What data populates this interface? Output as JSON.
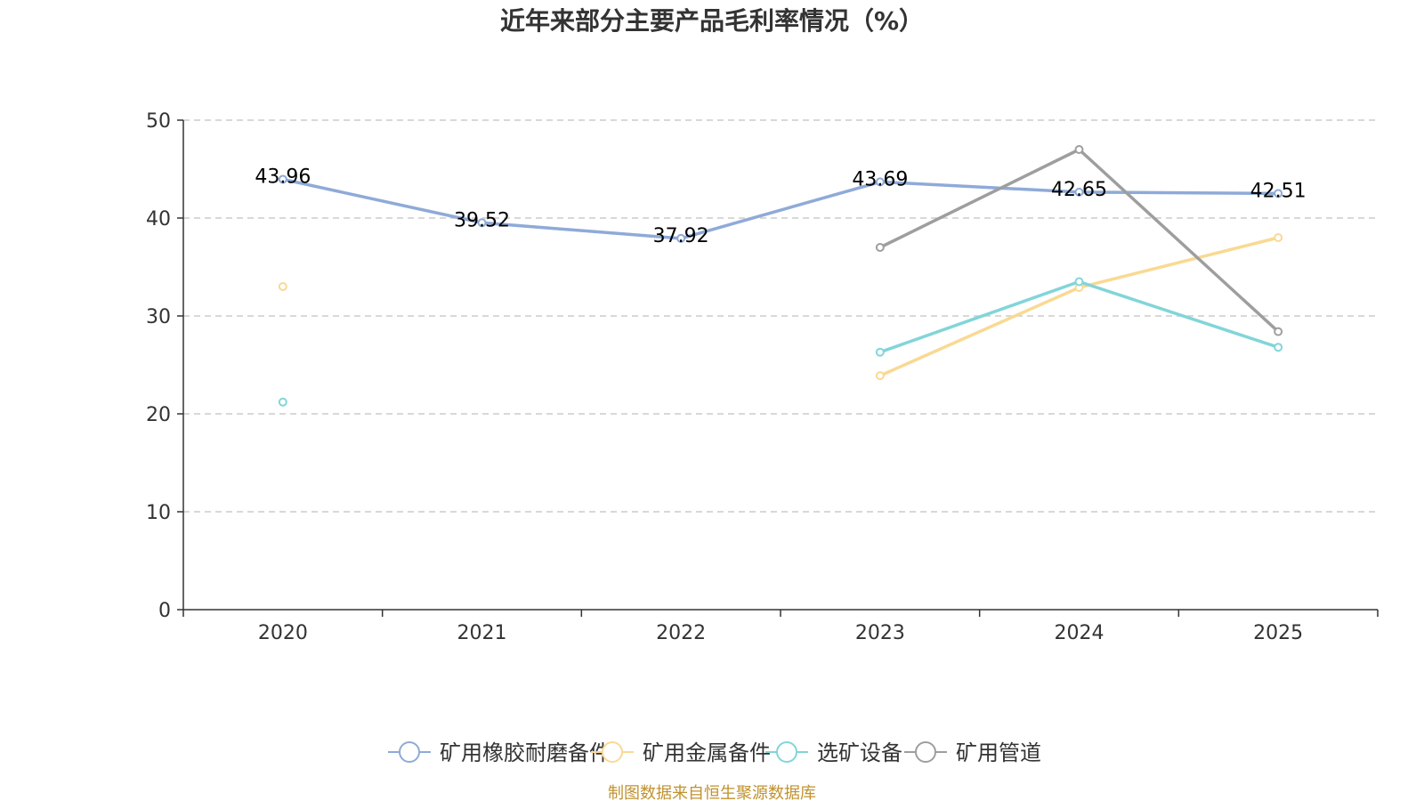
{
  "colors": {
    "series": [
      "#8eaad8",
      "#f9d993",
      "#82d5d8",
      "#9e9e9e"
    ],
    "axis": "#333333",
    "grid": "#cccccc",
    "source": "#c0922e"
  },
  "chart_data": {
    "type": "line",
    "title": "近年来部分主要产品毛利率情况（%）",
    "categories": [
      "2020",
      "2021",
      "2022",
      "2023",
      "2024",
      "2025"
    ],
    "ylim": [
      0,
      50
    ],
    "yticks": [
      0,
      10,
      20,
      30,
      40,
      50
    ],
    "grid": true,
    "legend_position": "bottom-center",
    "series": [
      {
        "name": "矿用橡胶耐磨备件",
        "values": [
          43.96,
          39.52,
          37.92,
          43.69,
          42.65,
          42.51
        ],
        "labeled": true
      },
      {
        "name": "矿用金属备件",
        "values": [
          33.0,
          null,
          null,
          23.9,
          32.9,
          38.0
        ],
        "labeled": false
      },
      {
        "name": "选矿设备",
        "values": [
          21.2,
          null,
          null,
          26.3,
          33.5,
          26.8
        ],
        "labeled": false
      },
      {
        "name": "矿用管道",
        "values": [
          null,
          null,
          null,
          37.0,
          47.0,
          28.4
        ],
        "labeled": false
      }
    ],
    "source": "制图数据来自恒生聚源数据库"
  }
}
